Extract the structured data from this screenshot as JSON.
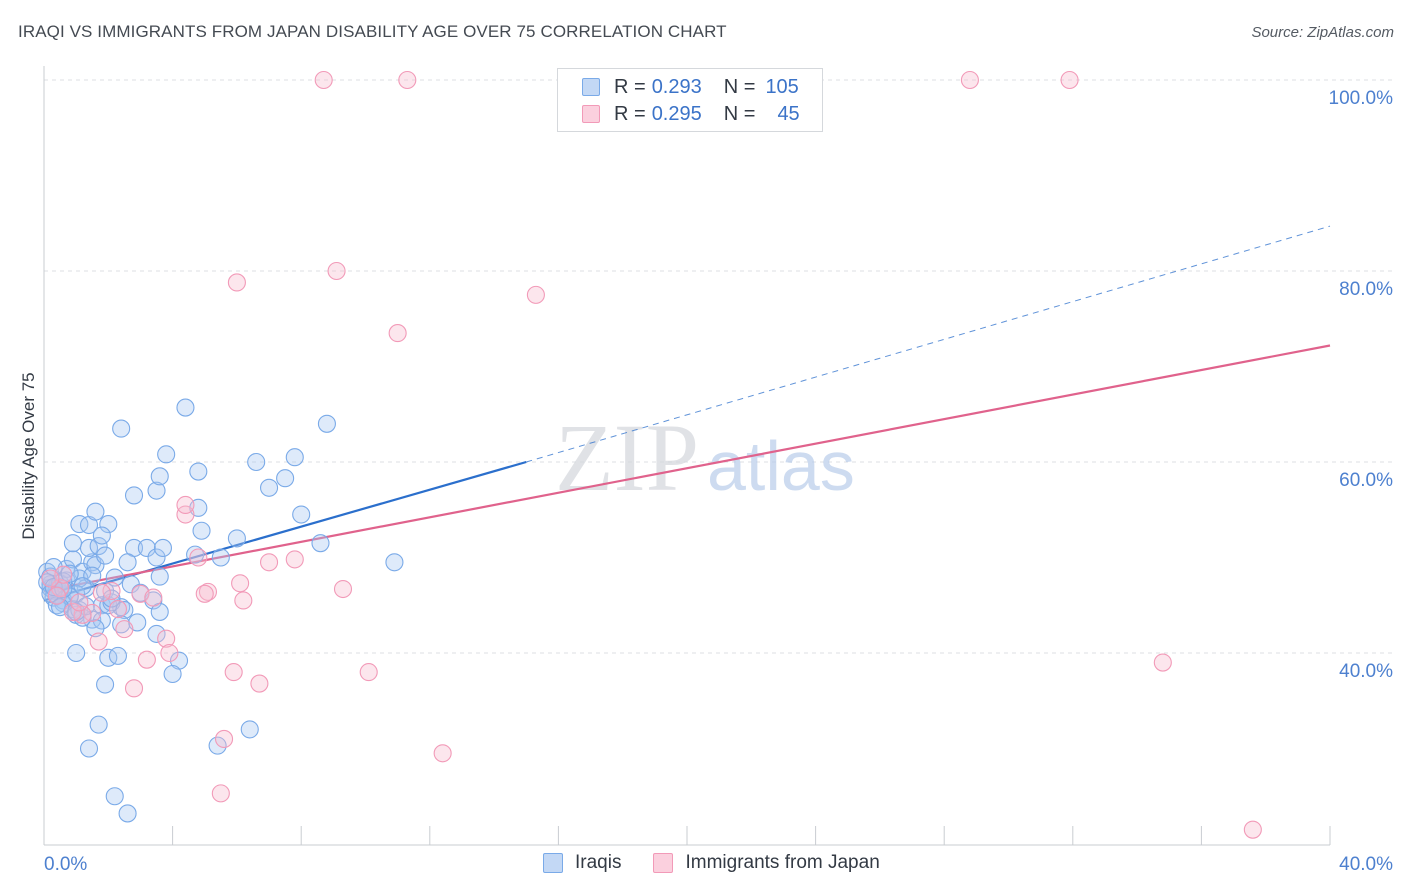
{
  "chart_data": {
    "type": "scatter",
    "title": "IRAQI VS IMMIGRANTS FROM JAPAN DISABILITY AGE OVER 75 CORRELATION CHART",
    "source": "Source: ZipAtlas.com",
    "ylabel": "Disability Age Over 75",
    "xlabel": "",
    "xlim": [
      0,
      40
    ],
    "ylim": [
      18,
      102
    ],
    "x_tick_labels": [
      "0.0%",
      "40.0%"
    ],
    "y_ticks": [
      {
        "value": 40,
        "label": "40.0%"
      },
      {
        "value": 60,
        "label": "60.0%"
      },
      {
        "value": 80,
        "label": "80.0%"
      },
      {
        "value": 100,
        "label": "100.0%"
      }
    ],
    "grid": true,
    "watermark": "ZIPatlas",
    "legend_stats": [
      {
        "r_label": "R =",
        "r_value": "0.293",
        "n_label": "N =",
        "n_value": "105",
        "color": "#7aaae8"
      },
      {
        "r_label": "R =",
        "r_value": "0.295",
        "n_label": "N =",
        "n_value": "45",
        "color": "#f29ab8"
      }
    ],
    "series": [
      {
        "name": "Iraqis",
        "color": "#7aaae8",
        "line_color": "#2b6fcc",
        "trend": {
          "x0": 0.0,
          "y0": 45.5,
          "x1": 15.0,
          "y1": 60.0,
          "dash_to_x": 40.0,
          "dash_to_y": 84.7
        },
        "points": [
          [
            0.1,
            48.5
          ],
          [
            0.2,
            47.2
          ],
          [
            0.3,
            46.5
          ],
          [
            0.2,
            46.8
          ],
          [
            0.4,
            47.0
          ],
          [
            0.5,
            46.3
          ],
          [
            0.3,
            45.8
          ],
          [
            0.6,
            45.5
          ],
          [
            0.4,
            46.1
          ],
          [
            0.7,
            47.6
          ],
          [
            0.2,
            48.0
          ],
          [
            0.5,
            47.3
          ],
          [
            0.8,
            46.0
          ],
          [
            0.6,
            45.2
          ],
          [
            0.9,
            44.6
          ],
          [
            1.0,
            44.0
          ],
          [
            1.1,
            44.5
          ],
          [
            0.7,
            48.8
          ],
          [
            0.9,
            49.8
          ],
          [
            1.2,
            48.5
          ],
          [
            1.5,
            49.5
          ],
          [
            1.6,
            49.2
          ],
          [
            1.4,
            51.0
          ],
          [
            1.7,
            51.2
          ],
          [
            0.9,
            51.5
          ],
          [
            1.1,
            53.5
          ],
          [
            1.4,
            53.4
          ],
          [
            1.6,
            54.8
          ],
          [
            2.0,
            53.5
          ],
          [
            1.8,
            52.3
          ],
          [
            1.3,
            46.8
          ],
          [
            1.9,
            46.5
          ],
          [
            2.2,
            47.9
          ],
          [
            1.1,
            47.8
          ],
          [
            1.8,
            45.0
          ],
          [
            2.4,
            44.8
          ],
          [
            2.0,
            45.0
          ],
          [
            2.1,
            45.3
          ],
          [
            2.5,
            44.5
          ],
          [
            2.4,
            43.0
          ],
          [
            1.5,
            43.5
          ],
          [
            1.2,
            43.7
          ],
          [
            1.8,
            43.4
          ],
          [
            2.8,
            51.0
          ],
          [
            3.2,
            51.0
          ],
          [
            3.5,
            50.0
          ],
          [
            3.7,
            51.0
          ],
          [
            2.6,
            49.5
          ],
          [
            3.6,
            48.0
          ],
          [
            3.4,
            45.5
          ],
          [
            3.6,
            44.3
          ],
          [
            3.5,
            42.0
          ],
          [
            1.0,
            40.0
          ],
          [
            2.0,
            39.5
          ],
          [
            2.3,
            39.7
          ],
          [
            4.2,
            39.2
          ],
          [
            4.0,
            37.8
          ],
          [
            1.9,
            36.7
          ],
          [
            1.7,
            32.5
          ],
          [
            1.4,
            30.0
          ],
          [
            2.2,
            25.0
          ],
          [
            2.6,
            23.2
          ],
          [
            2.8,
            56.5
          ],
          [
            3.5,
            57.0
          ],
          [
            3.6,
            58.5
          ],
          [
            3.8,
            60.8
          ],
          [
            4.4,
            65.7
          ],
          [
            4.8,
            59.0
          ],
          [
            4.8,
            55.2
          ],
          [
            4.9,
            52.8
          ],
          [
            4.7,
            50.3
          ],
          [
            5.5,
            50.0
          ],
          [
            6.0,
            52.0
          ],
          [
            6.6,
            60.0
          ],
          [
            7.0,
            57.3
          ],
          [
            7.5,
            58.3
          ],
          [
            7.8,
            60.5
          ],
          [
            8.0,
            54.5
          ],
          [
            8.6,
            51.5
          ],
          [
            8.8,
            64.0
          ],
          [
            10.9,
            49.5
          ],
          [
            2.4,
            63.5
          ],
          [
            5.4,
            30.3
          ],
          [
            6.4,
            32.0
          ],
          [
            0.3,
            49.0
          ],
          [
            0.6,
            47.5
          ],
          [
            1.0,
            46.2
          ],
          [
            0.8,
            45.9
          ],
          [
            1.3,
            44.9
          ],
          [
            2.7,
            47.2
          ],
          [
            3.0,
            46.3
          ],
          [
            2.9,
            43.2
          ],
          [
            1.6,
            42.6
          ],
          [
            0.4,
            45.0
          ],
          [
            1.5,
            48.1
          ],
          [
            0.1,
            47.4
          ],
          [
            0.2,
            46.2
          ],
          [
            0.8,
            48.3
          ],
          [
            1.9,
            50.2
          ],
          [
            0.5,
            44.8
          ],
          [
            1.2,
            47.0
          ],
          [
            2.1,
            45.7
          ],
          [
            0.3,
            46.9
          ],
          [
            1.0,
            44.3
          ],
          [
            0.6,
            46.7
          ]
        ]
      },
      {
        "name": "Immigrants from Japan",
        "color": "#f29ab8",
        "line_color": "#e0628c",
        "trend": {
          "x0": 0.0,
          "y0": 46.5,
          "x1": 40.0,
          "y1": 72.2
        },
        "points": [
          [
            8.7,
            100.0
          ],
          [
            11.3,
            100.0
          ],
          [
            28.8,
            100.0
          ],
          [
            31.9,
            100.0
          ],
          [
            9.1,
            80.0
          ],
          [
            6.0,
            78.8
          ],
          [
            15.3,
            77.5
          ],
          [
            11.0,
            73.5
          ],
          [
            4.4,
            54.5
          ],
          [
            4.4,
            55.5
          ],
          [
            7.8,
            49.8
          ],
          [
            7.0,
            49.5
          ],
          [
            4.8,
            50.0
          ],
          [
            6.1,
            47.3
          ],
          [
            5.1,
            46.4
          ],
          [
            5.0,
            46.2
          ],
          [
            6.2,
            45.5
          ],
          [
            9.3,
            46.7
          ],
          [
            3.0,
            46.2
          ],
          [
            3.4,
            45.8
          ],
          [
            2.1,
            46.5
          ],
          [
            1.8,
            46.3
          ],
          [
            1.5,
            44.2
          ],
          [
            1.2,
            44.0
          ],
          [
            0.5,
            46.8
          ],
          [
            0.6,
            48.2
          ],
          [
            0.9,
            44.3
          ],
          [
            2.5,
            42.5
          ],
          [
            3.8,
            41.5
          ],
          [
            1.7,
            41.2
          ],
          [
            3.2,
            39.3
          ],
          [
            3.9,
            40.0
          ],
          [
            2.8,
            36.3
          ],
          [
            5.9,
            38.0
          ],
          [
            6.7,
            36.8
          ],
          [
            10.1,
            38.0
          ],
          [
            12.4,
            29.5
          ],
          [
            5.6,
            31.0
          ],
          [
            5.5,
            25.3
          ],
          [
            34.8,
            39.0
          ],
          [
            37.6,
            21.5
          ],
          [
            0.2,
            47.8
          ],
          [
            0.4,
            46.0
          ],
          [
            1.1,
            45.3
          ],
          [
            2.3,
            44.6
          ]
        ]
      }
    ]
  }
}
